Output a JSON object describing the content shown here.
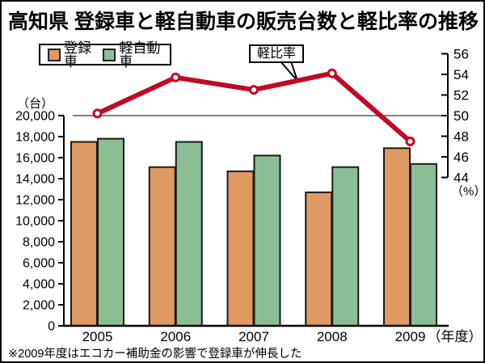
{
  "title": "高知県 登録車と軽自動車の販売台数と軽比率の推移",
  "legend": {
    "registered_label": "登録車",
    "kei_label": "軽自動車"
  },
  "callout_label": "軽比率",
  "footnote": "※2009年度はエコカー補助金の影響で登録車が伸長した",
  "colors": {
    "registered_bar": "#DE9A62",
    "kei_bar": "#8CBE96",
    "bar_outline": "#1a1a1a",
    "ratio_line": "#C20823",
    "fifty_line": "#808080",
    "axis": "#000000"
  },
  "left_axis": {
    "unit": "（台）",
    "min": 0,
    "max": 20000,
    "step": 2000
  },
  "right_axis": {
    "unit": "（%）",
    "min": 44,
    "max": 56,
    "step": 2
  },
  "x_axis": {
    "year_suffix": "（年度）"
  },
  "chart_data": {
    "type": "bar",
    "categories": [
      "2005",
      "2006",
      "2007",
      "2008",
      "2009"
    ],
    "series": [
      {
        "name": "登録車",
        "type": "bar",
        "axis": "left",
        "color": "#DE9A62",
        "values": [
          17500,
          15100,
          14700,
          12700,
          16900
        ]
      },
      {
        "name": "軽自動車",
        "type": "bar",
        "axis": "left",
        "color": "#8CBE96",
        "values": [
          17800,
          17500,
          16200,
          15100,
          15400
        ]
      },
      {
        "name": "軽比率",
        "type": "line",
        "axis": "right",
        "color": "#C20823",
        "values": [
          50.2,
          53.7,
          52.5,
          54.1,
          47.5
        ]
      }
    ],
    "title": "高知県 登録車と軽自動車の販売台数と軽比率の推移",
    "left_ylabel": "（台）",
    "right_ylabel": "（%）",
    "left_ylim": [
      0,
      20000
    ],
    "right_ylim": [
      44,
      56
    ],
    "grid": "horizontal reference line at 50% only",
    "legend_position": "top-left",
    "annotations": [
      "軽比率 callout pointing at line between 2007 and 2008"
    ]
  }
}
